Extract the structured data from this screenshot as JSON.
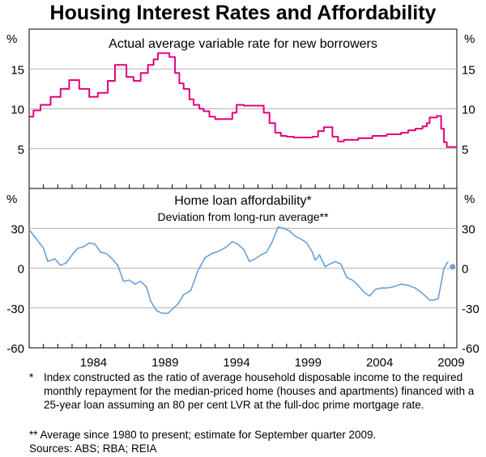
{
  "title": "Housing Interest Rates and Affordability",
  "footnotes": {
    "note1_mark": "*",
    "note1_text": "Index constructed as the ratio of average household disposable income to the required monthly repayment for the median-priced home (houses and apartments) financed with a 25-year loan assuming an 80 per cent LVR at the full-doc prime mortgage rate.",
    "note2": "** Average since 1980 to present; estimate for September quarter 2009.",
    "sources": "Sources: ABS; RBA; REIA"
  },
  "colors": {
    "rate_line": "#e5007d",
    "afford_line": "#6a9fd8",
    "grid": "#9a9a9a"
  },
  "chart_data": [
    {
      "type": "line",
      "title": "Actual average variable rate for new borrowers",
      "unit_left": "%",
      "unit_right": "%",
      "ylim": [
        0,
        20
      ],
      "xlim": [
        1980.0,
        2009.9
      ],
      "yticks": [
        5,
        10,
        15
      ],
      "xticks": [
        "1984",
        "1989",
        "1994",
        "1999",
        "2004",
        "2009"
      ],
      "series": [
        {
          "color": "#e5007d",
          "step": true,
          "x": [
            1980.0,
            1980.3,
            1980.8,
            1981.5,
            1982.2,
            1982.8,
            1983.5,
            1984.2,
            1984.8,
            1985.5,
            1986.0,
            1986.8,
            1987.3,
            1987.8,
            1988.3,
            1988.7,
            1989.0,
            1989.3,
            1989.8,
            1990.2,
            1990.5,
            1990.8,
            1991.2,
            1991.5,
            1991.9,
            1992.2,
            1992.6,
            1993.0,
            1994.2,
            1994.5,
            1995.0,
            1996.4,
            1996.8,
            1997.2,
            1997.6,
            1998.0,
            1998.5,
            1999.0,
            1999.8,
            2000.2,
            2000.6,
            2001.2,
            2001.6,
            2002.0,
            2003.0,
            2004.0,
            2005.0,
            2006.0,
            2006.5,
            2007.0,
            2007.5,
            2007.8,
            2008.0,
            2008.5,
            2008.8,
            2009.0,
            2009.2,
            2009.9
          ],
          "y": [
            9.0,
            9.8,
            10.5,
            11.5,
            12.5,
            13.6,
            12.5,
            11.5,
            12.0,
            13.5,
            15.5,
            14.0,
            13.5,
            14.5,
            15.5,
            16.2,
            17.0,
            17.0,
            16.5,
            14.5,
            13.2,
            12.5,
            11.2,
            10.5,
            10.0,
            9.7,
            9.0,
            8.7,
            9.5,
            10.5,
            10.4,
            9.5,
            8.2,
            7.0,
            6.6,
            6.5,
            6.4,
            6.4,
            6.5,
            7.2,
            7.7,
            6.5,
            5.9,
            6.1,
            6.3,
            6.6,
            6.8,
            7.0,
            7.3,
            7.5,
            7.8,
            8.2,
            8.9,
            9.1,
            7.5,
            5.8,
            5.2,
            5.2
          ]
        }
      ]
    },
    {
      "type": "line",
      "title": "Home loan affordability*",
      "subtitle": "Deviation from long-run average**",
      "unit_left": "%",
      "unit_right": "%",
      "ylim": [
        -60,
        60
      ],
      "yticks": [
        30,
        0,
        -30,
        -60
      ],
      "xticks": [
        "1984",
        "1989",
        "1994",
        "1999",
        "2004",
        "2009"
      ],
      "series": [
        {
          "color": "#6a9fd8",
          "step": false,
          "x": [
            1980.0,
            1980.5,
            1981.0,
            1981.3,
            1981.8,
            1982.2,
            1982.6,
            1983.0,
            1983.4,
            1983.8,
            1984.2,
            1984.6,
            1985.0,
            1985.4,
            1985.8,
            1986.2,
            1986.6,
            1987.0,
            1987.4,
            1987.8,
            1988.2,
            1988.5,
            1988.9,
            1989.3,
            1989.7,
            1990.0,
            1990.4,
            1990.8,
            1991.3,
            1991.8,
            1992.3,
            1992.8,
            1993.3,
            1993.8,
            1994.2,
            1994.6,
            1995.0,
            1995.4,
            1995.8,
            1996.2,
            1996.6,
            1997.0,
            1997.4,
            1997.8,
            1998.2,
            1998.6,
            1999.0,
            1999.4,
            1999.8,
            2000.0,
            2000.3,
            2000.7,
            2001.0,
            2001.4,
            2001.8,
            2002.2,
            2002.6,
            2003.0,
            2003.4,
            2003.8,
            2004.2,
            2004.6,
            2005.0,
            2005.5,
            2006.0,
            2006.5,
            2007.0,
            2007.5,
            2008.0,
            2008.3,
            2008.6,
            2009.0,
            2009.3
          ],
          "y": [
            29,
            22,
            15,
            5,
            7,
            2,
            4,
            10,
            15,
            16,
            19,
            18,
            12,
            11,
            7,
            2,
            -10,
            -9,
            -12,
            -10,
            -14,
            -25,
            -32,
            -34,
            -34,
            -31,
            -27,
            -20,
            -17,
            -2,
            8,
            11,
            13,
            16,
            20,
            18,
            14,
            5,
            7,
            10,
            12,
            20,
            31,
            30,
            28,
            24,
            22,
            19,
            12,
            6,
            10,
            1,
            3,
            5,
            3,
            -7,
            -9,
            -13,
            -18,
            -21,
            -16,
            -15,
            -15,
            -14,
            -12,
            -13,
            -15,
            -19,
            -24,
            -24,
            -23,
            0,
            5
          ]
        }
      ],
      "estimate_point": {
        "x": 2009.6,
        "y": 1
      }
    }
  ]
}
